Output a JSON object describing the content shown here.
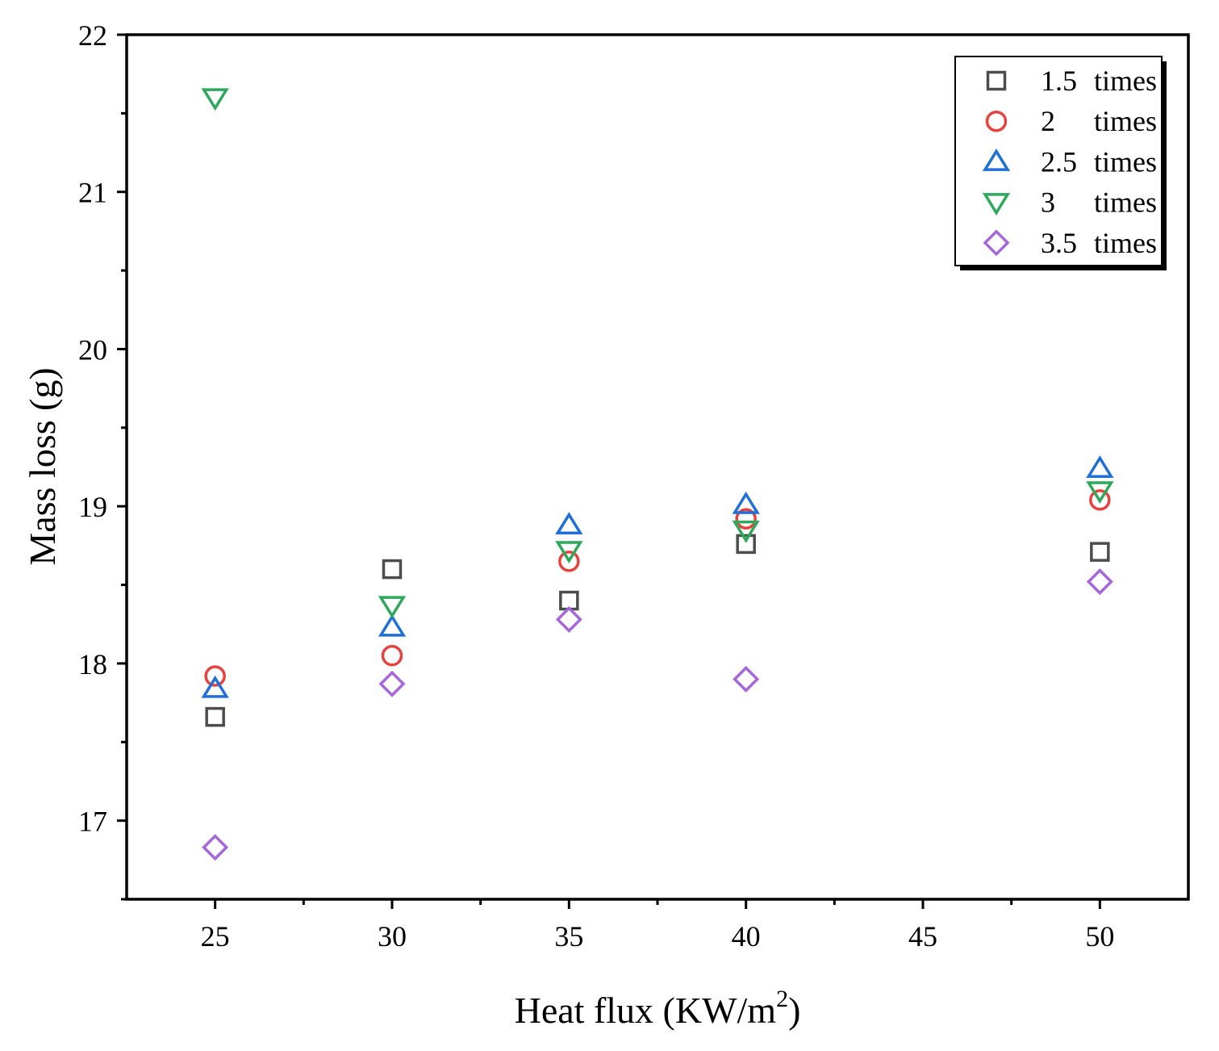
{
  "chart_data": {
    "type": "scatter",
    "title": "",
    "xlabel": "Heat flux (KW/m",
    "xlabel_superscript": "2",
    "xlabel_suffix": ")",
    "ylabel": "Mass loss (g)",
    "xlim": [
      22.5,
      52.5
    ],
    "ylim": [
      16.5,
      22
    ],
    "x_ticks": [
      25,
      30,
      35,
      40,
      45,
      50
    ],
    "x_tick_labels": [
      "25",
      "30",
      "35",
      "40",
      "45",
      "50"
    ],
    "y_ticks": [
      17,
      18,
      19,
      20,
      21,
      22
    ],
    "y_tick_labels": [
      "17",
      "18",
      "19",
      "20",
      "21",
      "22"
    ],
    "x_minor_ticks": [
      27.5,
      32.5,
      37.5,
      42.5,
      47.5
    ],
    "y_minor_ticks": [
      16.5,
      17.5,
      18.5,
      19.5,
      20.5,
      21.5
    ],
    "grid": false,
    "legend_position": "top-right",
    "series": [
      {
        "name": "1.5 times",
        "legend_num": "1.5",
        "legend_unit": "times",
        "marker": "square",
        "color": "#4d4d4d",
        "x": [
          25,
          30,
          35,
          40,
          50
        ],
        "y": [
          17.66,
          18.6,
          18.4,
          18.76,
          18.71
        ]
      },
      {
        "name": "2 times",
        "legend_num": "2",
        "legend_unit": "times",
        "marker": "circle",
        "color": "#e8423f",
        "x": [
          25,
          30,
          35,
          40,
          50
        ],
        "y": [
          17.92,
          18.05,
          18.65,
          18.92,
          19.04
        ]
      },
      {
        "name": "2.5 times",
        "legend_num": "2.5",
        "legend_unit": "times",
        "marker": "triangle-up",
        "color": "#1f6fd8",
        "x": [
          25,
          30,
          35,
          40,
          50
        ],
        "y": [
          17.84,
          18.23,
          18.88,
          19.01,
          19.24
        ]
      },
      {
        "name": "3 times",
        "legend_num": "3",
        "legend_unit": "times",
        "marker": "triangle-down",
        "color": "#2ea85a",
        "x": [
          25,
          30,
          35,
          40,
          50
        ],
        "y": [
          21.6,
          18.37,
          18.72,
          18.85,
          19.1
        ]
      },
      {
        "name": "3.5 times",
        "legend_num": "3.5",
        "legend_unit": "times",
        "marker": "diamond",
        "color": "#a666dc",
        "x": [
          25,
          30,
          35,
          40,
          50
        ],
        "y": [
          16.83,
          17.87,
          18.28,
          17.9,
          18.52
        ]
      }
    ]
  }
}
